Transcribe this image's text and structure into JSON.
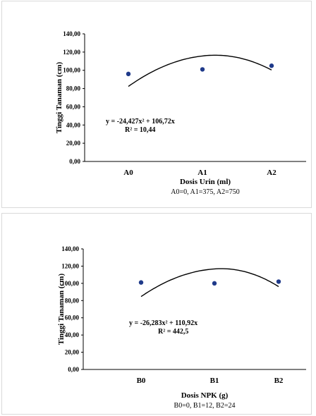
{
  "chart_data": [
    {
      "type": "scatter",
      "categories": [
        "A0",
        "A1",
        "A2"
      ],
      "values": [
        96,
        101,
        105
      ],
      "ylim": [
        0,
        140
      ],
      "yticks": [
        "0,00",
        "20,00",
        "40,00",
        "60,00",
        "80,00",
        "100,00",
        "120,00",
        "140,00"
      ],
      "ylabel": "Tinggi Tanaman (cm)",
      "xlabel": "Dosis Urin (ml)",
      "note": "A0=0, A1=375, A2=750",
      "trendline": {
        "type": "polynomial",
        "a": -24.427,
        "b": 106.72,
        "c": 0,
        "equation": "y = -24,427x² + 106,72x",
        "r2": "R² = 10,44"
      },
      "marker_color": "#1f3a8a",
      "grid": false,
      "legend": "none"
    },
    {
      "type": "scatter",
      "categories": [
        "B0",
        "B1",
        "B2"
      ],
      "values": [
        101,
        100,
        102
      ],
      "ylim": [
        0,
        140
      ],
      "yticks": [
        "0,00",
        "20,00",
        "40,00",
        "60,00",
        "80,00",
        "100,00",
        "120,00",
        "140,00"
      ],
      "ylabel": "Tinggi Tanaman (cm)",
      "xlabel": "Dosis NPK (g)",
      "note": "B0=0, B1=12, B2=24",
      "trendline": {
        "type": "polynomial",
        "a": -26.283,
        "b": 110.92,
        "c": 0,
        "equation": "y = -26,283x² + 110,92x",
        "r2": "R² = 442,5"
      },
      "marker_color": "#1f3a8a",
      "grid": false,
      "legend": "none"
    }
  ]
}
